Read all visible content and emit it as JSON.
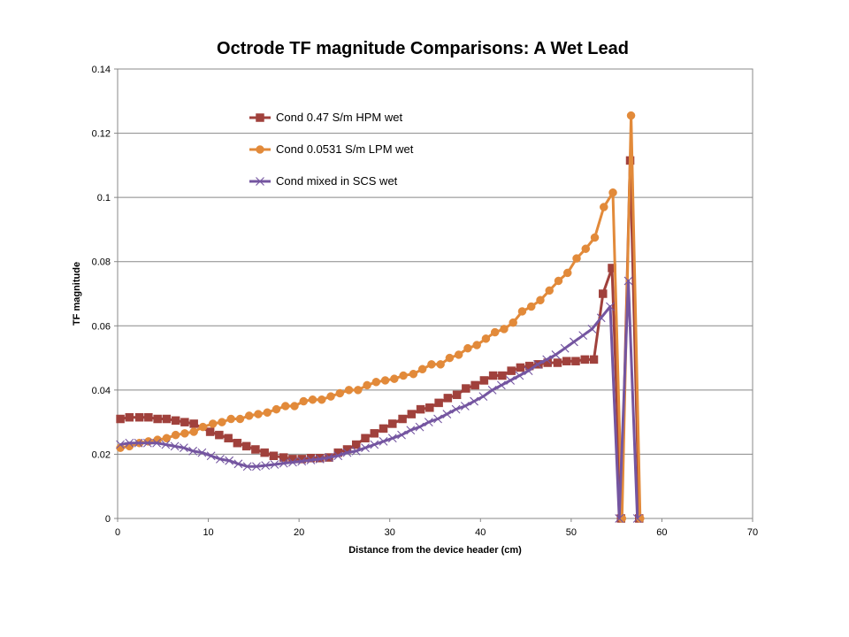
{
  "chart_data": {
    "type": "line",
    "title": "Octrode TF magnitude Comparisons: A Wet Lead",
    "xlabel": "Distance from the device header (cm)",
    "ylabel": "TF magnitude",
    "xlim": [
      0,
      70
    ],
    "ylim": [
      0,
      0.14
    ],
    "xticks": [
      0,
      10,
      20,
      30,
      40,
      50,
      60,
      70
    ],
    "yticks": [
      0,
      0.02,
      0.04,
      0.06,
      0.08,
      0.1,
      0.12,
      0.14
    ],
    "ytick_labels": [
      "0",
      "0.02",
      "0.04",
      "0.06",
      "0.08",
      "0.1",
      "0.12",
      "0.14"
    ],
    "grid": "horizontal",
    "legend_position": "top-center",
    "series": [
      {
        "name": "Cond 0.47 S/m HPM wet",
        "color": "#A0413C",
        "marker": "square",
        "x": [
          0.3,
          1.3,
          2.4,
          3.4,
          4.4,
          5.4,
          6.4,
          7.4,
          8.4,
          10.2,
          11.2,
          12.2,
          13.2,
          14.2,
          15.2,
          16.2,
          17.2,
          18.3,
          19.3,
          20.3,
          21.3,
          22.3,
          23.3,
          24.3,
          25.3,
          26.3,
          27.3,
          28.3,
          29.3,
          30.3,
          31.4,
          32.4,
          33.4,
          34.4,
          35.4,
          36.4,
          37.4,
          38.4,
          39.4,
          40.4,
          41.4,
          42.4,
          43.4,
          44.4,
          45.4,
          46.4,
          47.4,
          48.5,
          49.5,
          50.5,
          51.5,
          52.5,
          53.5,
          54.5,
          55.5,
          56.5,
          57.5
        ],
        "y": [
          0.031,
          0.0315,
          0.0315,
          0.0315,
          0.031,
          0.031,
          0.0305,
          0.03,
          0.0295,
          0.027,
          0.026,
          0.025,
          0.0235,
          0.0225,
          0.0215,
          0.0205,
          0.0195,
          0.019,
          0.0185,
          0.0185,
          0.0188,
          0.0188,
          0.019,
          0.0205,
          0.0215,
          0.023,
          0.025,
          0.0265,
          0.028,
          0.0295,
          0.031,
          0.0325,
          0.034,
          0.0345,
          0.036,
          0.0375,
          0.0385,
          0.0405,
          0.0415,
          0.043,
          0.0445,
          0.0445,
          0.046,
          0.047,
          0.0475,
          0.048,
          0.0485,
          0.0485,
          0.049,
          0.049,
          0.0495,
          0.0495,
          0.07,
          0.078,
          0.0,
          0.1115,
          0.0
        ]
      },
      {
        "name": "Cond 0.0531 S/m LPM  wet",
        "color": "#E28A3A",
        "marker": "circle",
        "x": [
          0.3,
          1.3,
          2.4,
          3.4,
          4.4,
          5.4,
          6.4,
          7.4,
          8.4,
          9.4,
          10.5,
          11.5,
          12.5,
          13.5,
          14.5,
          15.5,
          16.5,
          17.5,
          18.5,
          19.5,
          20.5,
          21.5,
          22.5,
          23.5,
          24.5,
          25.5,
          26.5,
          27.5,
          28.5,
          29.5,
          30.5,
          31.5,
          32.6,
          33.6,
          34.6,
          35.6,
          36.6,
          37.6,
          38.6,
          39.6,
          40.6,
          41.6,
          42.6,
          43.6,
          44.6,
          45.6,
          46.6,
          47.6,
          48.6,
          49.6,
          50.6,
          51.6,
          52.6,
          53.6,
          54.6,
          55.6,
          56.6,
          57.6
        ],
        "y": [
          0.022,
          0.0225,
          0.0235,
          0.024,
          0.0245,
          0.025,
          0.026,
          0.0265,
          0.027,
          0.0285,
          0.0295,
          0.03,
          0.031,
          0.031,
          0.032,
          0.0325,
          0.033,
          0.034,
          0.035,
          0.035,
          0.0365,
          0.037,
          0.037,
          0.038,
          0.039,
          0.04,
          0.04,
          0.0415,
          0.0425,
          0.043,
          0.0435,
          0.0445,
          0.045,
          0.0465,
          0.048,
          0.048,
          0.05,
          0.051,
          0.053,
          0.054,
          0.056,
          0.058,
          0.059,
          0.061,
          0.0645,
          0.066,
          0.068,
          0.071,
          0.074,
          0.0765,
          0.081,
          0.084,
          0.0875,
          0.097,
          0.1015,
          0.0,
          0.1255,
          0.0
        ]
      },
      {
        "name": "Cond mixed in SCS  wet",
        "color": "#7455A0",
        "marker": "x",
        "x": [
          0.3,
          1.3,
          2.3,
          3.3,
          4.3,
          5.3,
          6.3,
          7.3,
          8.3,
          9.3,
          10.3,
          11.3,
          12.3,
          13.3,
          14.3,
          15.3,
          16.3,
          17.3,
          18.3,
          19.3,
          20.3,
          21.3,
          22.3,
          23.3,
          24.3,
          25.3,
          26.3,
          27.3,
          28.3,
          29.3,
          30.3,
          31.3,
          32.3,
          33.3,
          34.3,
          35.3,
          36.3,
          37.3,
          38.3,
          39.3,
          40.3,
          41.3,
          42.3,
          43.3,
          44.3,
          45.3,
          46.3,
          47.3,
          48.3,
          49.3,
          50.3,
          51.3,
          52.3,
          53.3,
          54.3,
          55.3,
          56.3,
          57.3
        ],
        "y": [
          0.023,
          0.0235,
          0.0235,
          0.0235,
          0.0235,
          0.023,
          0.0225,
          0.022,
          0.021,
          0.0205,
          0.0195,
          0.0185,
          0.018,
          0.017,
          0.0162,
          0.0162,
          0.0165,
          0.0168,
          0.0172,
          0.0175,
          0.0178,
          0.0182,
          0.0185,
          0.019,
          0.0195,
          0.0205,
          0.021,
          0.022,
          0.023,
          0.024,
          0.025,
          0.026,
          0.0275,
          0.0285,
          0.03,
          0.031,
          0.0325,
          0.034,
          0.035,
          0.0365,
          0.038,
          0.04,
          0.0415,
          0.043,
          0.0445,
          0.046,
          0.048,
          0.0495,
          0.051,
          0.053,
          0.055,
          0.057,
          0.059,
          0.0625,
          0.066,
          0.0,
          0.074,
          0.0
        ]
      }
    ]
  }
}
